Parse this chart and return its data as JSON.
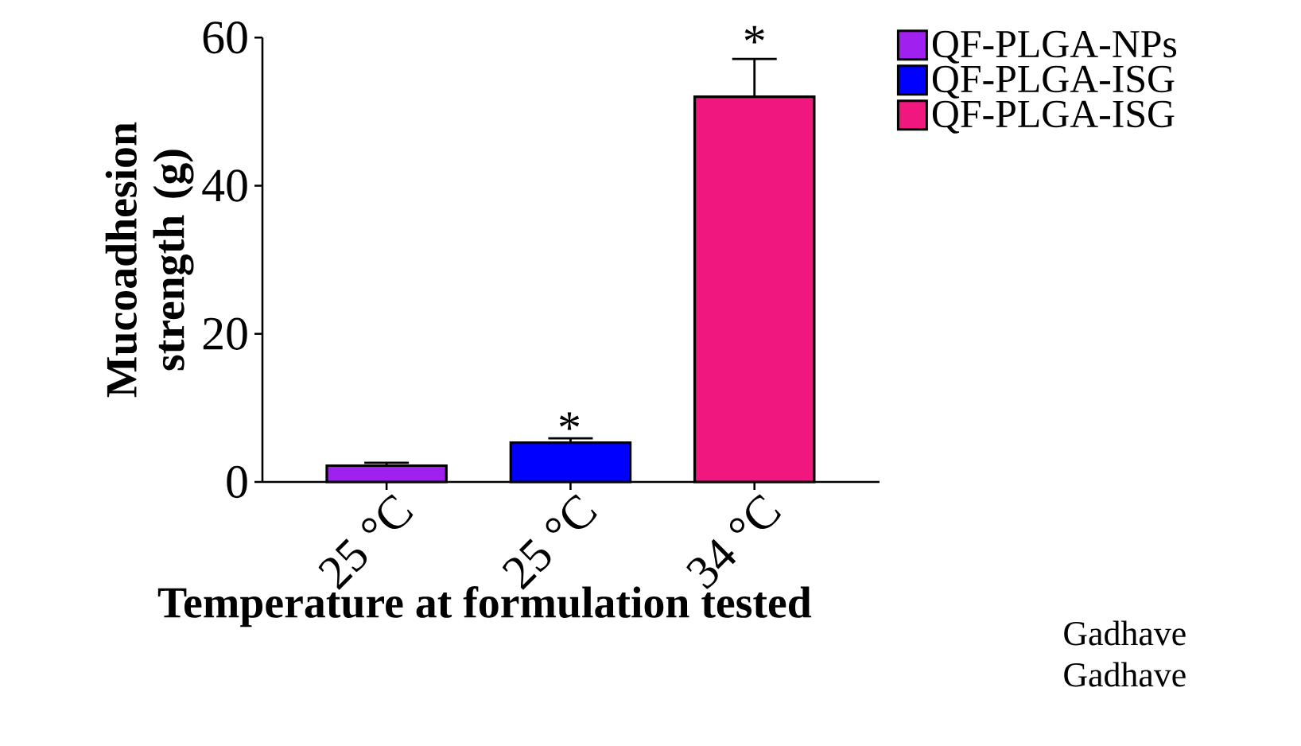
{
  "chart_data": {
    "type": "bar",
    "xlabel": "Temperature at formulation tested",
    "ylabel": "Mucoadhesion strength (g)",
    "categories": [
      "25 °C",
      "25 °C",
      "34 °C"
    ],
    "series": [
      {
        "name": "QF-PLGA-NPs",
        "color": "#a020f0",
        "values": [
          2.2,
          null,
          null
        ],
        "errors": [
          [
            2.2,
            2.6
          ],
          null,
          null
        ]
      },
      {
        "name": "QF-PLGA-ISG",
        "color": "#0000ff",
        "values": [
          null,
          5.3,
          null
        ],
        "errors": [
          null,
          [
            5.3,
            5.9
          ],
          null
        ]
      },
      {
        "name": "QF-PLGA-ISG",
        "color": "#f0187f",
        "values": [
          null,
          null,
          52.0
        ],
        "errors": [
          null,
          null,
          [
            52.0,
            57.1
          ]
        ]
      }
    ],
    "ylim": [
      0,
      60
    ],
    "yticks": [
      0,
      20,
      40,
      60
    ],
    "grid": false,
    "legend": "right",
    "annotations": [
      "*",
      {
        "text": "*",
        "x": "34 °C",
        "y": 57.1
      },
      "Gadhave",
      "Gadhave"
    ]
  }
}
